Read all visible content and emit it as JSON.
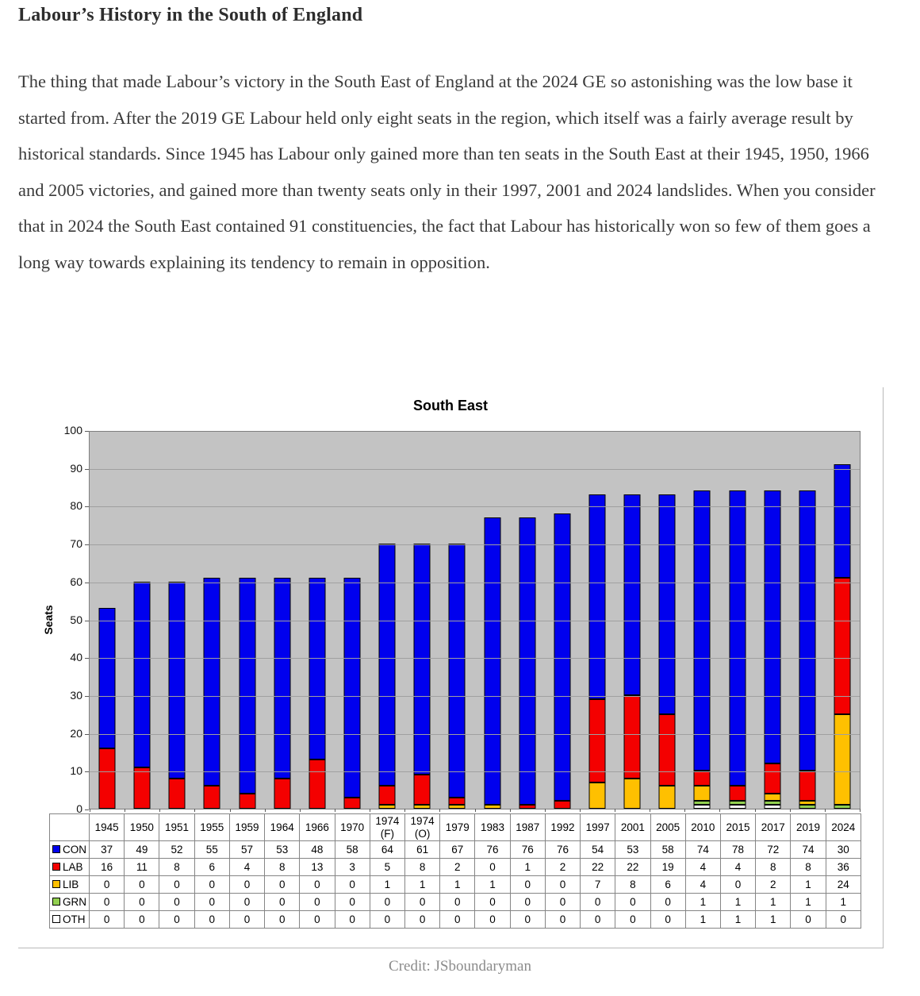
{
  "document": {
    "title": "Labour’s History in the South of England",
    "paragraph": "The thing that made Labour’s victory in the South East of England at the 2024 GE so astonishing was the low base it started from. After the 2019 GE Labour held only eight seats in the region, which itself was a fairly average result by historical standards. Since 1945 has Labour only gained more than ten seats in the South East at their 1945, 1950, 1966 and 2005 victories, and gained more than twenty seats only in their 1997, 2001 and 2024 landslides. When you consider that in 2024 the South East contained 91 constituencies, the fact that Labour has historically won so few of them goes a long way towards explaining its tendency to remain in opposition.",
    "credit": "Credit: JSboundaryman"
  },
  "chart_data": {
    "type": "bar",
    "stacked": true,
    "title": "South East",
    "ylabel": "Seats",
    "ylim": [
      0,
      100
    ],
    "ytick_step": 10,
    "grid": true,
    "plot_background": "#c3c3c3",
    "legend_position": "table-row-headers",
    "categories": [
      "1945",
      "1950",
      "1951",
      "1955",
      "1959",
      "1964",
      "1966",
      "1970",
      "1974 (F)",
      "1974 (O)",
      "1979",
      "1983",
      "1987",
      "1992",
      "1997",
      "2001",
      "2005",
      "2010",
      "2015",
      "2017",
      "2019",
      "2024"
    ],
    "series": [
      {
        "name": "CON",
        "color": "#0000ee",
        "values": [
          37,
          49,
          52,
          55,
          57,
          53,
          48,
          58,
          64,
          61,
          67,
          76,
          76,
          76,
          54,
          53,
          58,
          74,
          78,
          72,
          74,
          30
        ]
      },
      {
        "name": "LAB",
        "color": "#f40000",
        "values": [
          16,
          11,
          8,
          6,
          4,
          8,
          13,
          3,
          5,
          8,
          2,
          0,
          1,
          2,
          22,
          22,
          19,
          4,
          4,
          8,
          8,
          36
        ]
      },
      {
        "name": "LIB",
        "color": "#ffc000",
        "values": [
          0,
          0,
          0,
          0,
          0,
          0,
          0,
          0,
          1,
          1,
          1,
          1,
          0,
          0,
          7,
          8,
          6,
          4,
          0,
          2,
          1,
          24
        ]
      },
      {
        "name": "GRN",
        "color": "#92d050",
        "values": [
          0,
          0,
          0,
          0,
          0,
          0,
          0,
          0,
          0,
          0,
          0,
          0,
          0,
          0,
          0,
          0,
          0,
          1,
          1,
          1,
          1,
          1
        ]
      },
      {
        "name": "OTH",
        "color": "#ffffff",
        "values": [
          0,
          0,
          0,
          0,
          0,
          0,
          0,
          0,
          0,
          0,
          0,
          0,
          0,
          0,
          0,
          0,
          0,
          1,
          1,
          1,
          0,
          0
        ]
      }
    ],
    "stack_order_bottom_to_top": [
      "OTH",
      "GRN",
      "LIB",
      "LAB",
      "CON"
    ]
  }
}
